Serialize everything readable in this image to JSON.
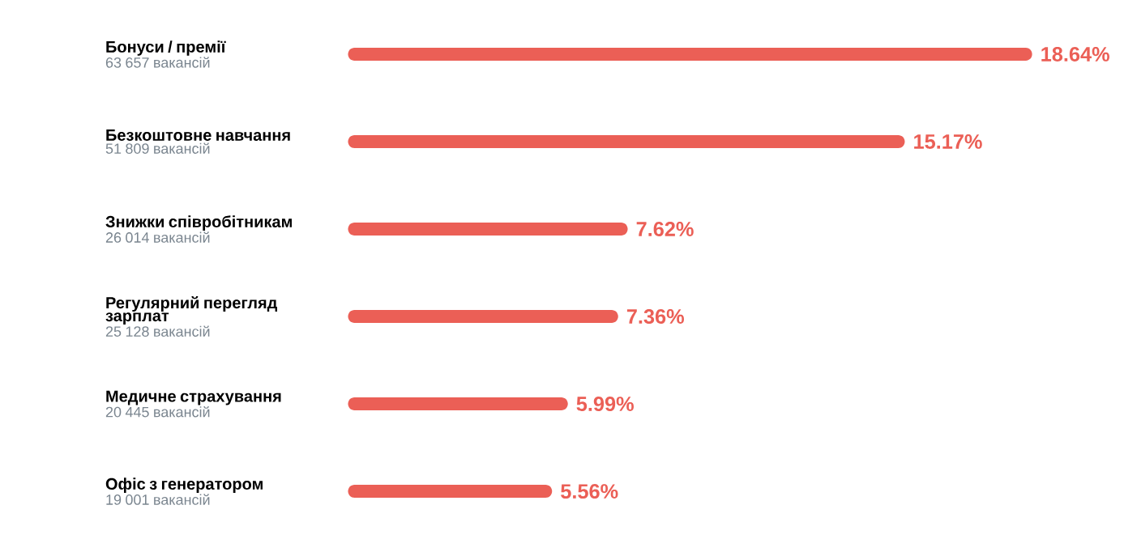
{
  "chart_data": {
    "type": "bar",
    "orientation": "horizontal",
    "categories": [
      "Бонуси / премії",
      "Безкоштовне навчання",
      "Знижки співробітникам",
      "Регулярний перегляд зарплат",
      "Медичне страхування",
      "Офіс з генератором"
    ],
    "annotations": [
      "63 657 вакансій",
      "51 809 вакансій",
      "26 014 вакансій",
      "25 128 вакансій",
      "20 445 вакансій",
      "19 001 вакансій"
    ],
    "values": [
      18.64,
      15.17,
      7.62,
      7.36,
      5.99,
      5.56
    ],
    "value_labels": [
      "18.64%",
      "15.17%",
      "7.62%",
      "7.36%",
      "5.99%",
      "5.56%"
    ],
    "color": "#eb5f56"
  }
}
